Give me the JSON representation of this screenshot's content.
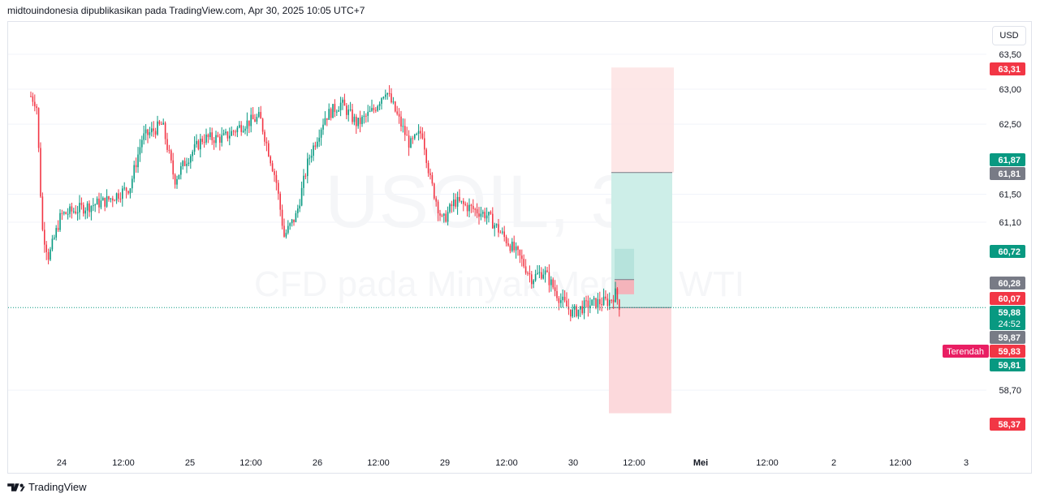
{
  "header": {
    "attribution": "midtouindonesia dipublikasikan pada TradingView.com, Apr 30, 2025 10:05 UTC+7"
  },
  "toolbar": {
    "currency": "USD"
  },
  "watermark": {
    "symbol": "USOIL, 30",
    "description": "CFD pada Minyak Mentah WTI"
  },
  "footer": {
    "brand": "TradingView"
  },
  "colors": {
    "up": "#089981",
    "down": "#f23645",
    "grid": "#f0f3fa",
    "gray_label": "#787b86",
    "lowest_label": "#e91e63",
    "target_zone": "#b2dfdb",
    "stop_zone": "#f8bbd0"
  },
  "chart_data": {
    "type": "candlestick",
    "symbol": "USOIL",
    "interval": "30",
    "currency": "USD",
    "y_axis_ticks": [
      "63,50",
      "63,00",
      "62,50",
      "61,50",
      "61,10",
      "58,70"
    ],
    "y_axis_tick_values": [
      63.5,
      63.0,
      62.5,
      61.5,
      61.1,
      58.7
    ],
    "x_axis_ticks": [
      "24",
      "12:00",
      "25",
      "12:00",
      "26",
      "12:00",
      "29",
      "12:00",
      "30",
      "12:00",
      "Mei",
      "12:00",
      "2",
      "12:00",
      "3"
    ],
    "price_labels": [
      {
        "text": "63,31",
        "value": 63.31,
        "color": "#f23645"
      },
      {
        "text": "61,87",
        "value": 61.87,
        "color": "#089981"
      },
      {
        "text": "61,81",
        "value": 61.81,
        "color": "#787b86"
      },
      {
        "text": "60,72",
        "value": 60.72,
        "color": "#089981"
      },
      {
        "text": "60,28",
        "value": 60.28,
        "color": "#787b86"
      },
      {
        "text": "60,07",
        "value": 60.07,
        "color": "#f23645"
      },
      {
        "text": "59,88",
        "value": 59.88,
        "color": "#089981",
        "sub": "24:52"
      },
      {
        "text": "59,87",
        "value": 59.87,
        "color": "#787b86"
      },
      {
        "text": "59,83",
        "value": 59.83,
        "color": "#f23645",
        "tag": "Terendah"
      },
      {
        "text": "59,81",
        "value": 59.81,
        "color": "#089981"
      },
      {
        "text": "58,37",
        "value": 58.37,
        "color": "#f23645"
      }
    ],
    "last_price": 59.88,
    "key_points": [
      {
        "t": "Apr 24",
        "close": 61.6
      },
      {
        "t": "Apr 25",
        "close": 62.9
      },
      {
        "t": "Apr 26",
        "close": 62.9
      },
      {
        "t": "Apr 29",
        "close": 61.9
      },
      {
        "t": "Apr 30",
        "close": 59.88
      }
    ],
    "positions": [
      {
        "side": "long",
        "entry": 59.88,
        "target": 61.81,
        "stop": 58.37
      },
      {
        "side": "short",
        "entry": 60.28,
        "target": 60.72,
        "stop": 63.31
      }
    ]
  }
}
